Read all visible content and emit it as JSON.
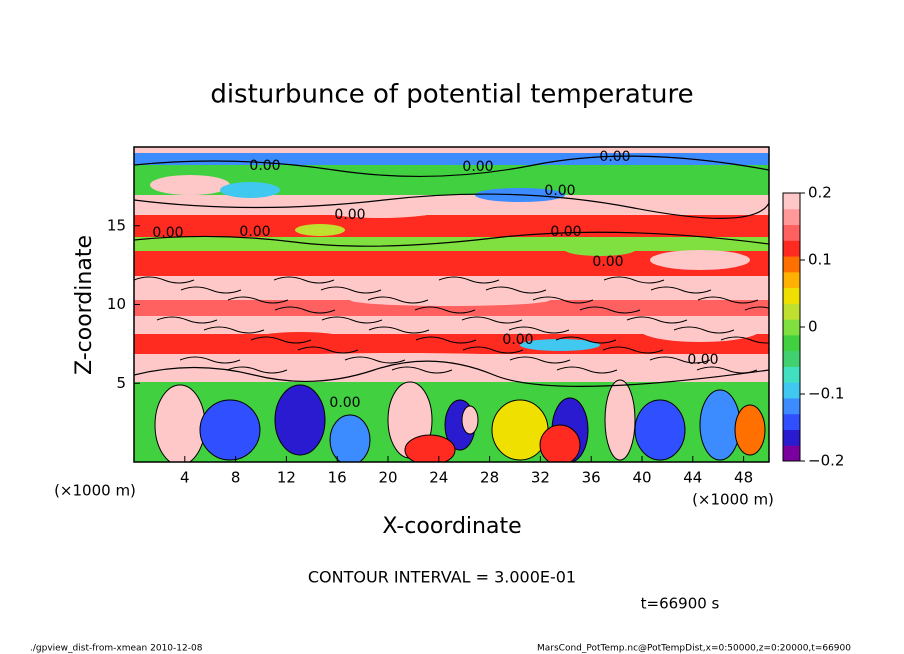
{
  "chart_data": {
    "type": "contour",
    "title": "disturbunce of potential temperature",
    "x_label": "X-coordinate",
    "y_label": "Z-coordinate",
    "x_unit": "(×1000 m)",
    "y_unit": "(×1000 m)",
    "xlim": [
      0,
      50
    ],
    "xticks": [
      4,
      8,
      12,
      16,
      20,
      24,
      28,
      32,
      36,
      40,
      44,
      48
    ],
    "ylim": [
      0,
      20
    ],
    "yticks": [
      5,
      10,
      15
    ],
    "clim": [
      -0.2,
      0.2
    ],
    "cticks": [
      {
        "value": -0.2,
        "label": "−0.2"
      },
      {
        "value": -0.1,
        "label": "−0.1"
      },
      0,
      0.1,
      0.2
    ],
    "colormap": [
      "#7a00a0",
      "#2a1ad0",
      "#3050ff",
      "#3c8cff",
      "#40c8f0",
      "#40e0c0",
      "#40d070",
      "#40d040",
      "#80e040",
      "#c0e030",
      "#f0e000",
      "#ffb000",
      "#ff7000",
      "#ff2a20",
      "#ff6060",
      "#ff9898",
      "#ffc8c8"
    ],
    "contour_label": "0.00",
    "contour_interval": "CONTOUR INTERVAL = 3.000E-01",
    "time": "t=66900 s",
    "footer_left": "./gpview_dist-from-xmean  2010-12-08",
    "footer_right": "MarsCond_PotTemp.nc@PotTempDist,x=0:50000,z=0:20000,t=66900"
  }
}
